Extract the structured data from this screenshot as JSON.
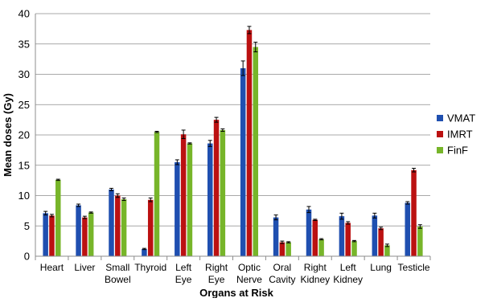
{
  "chart_data": {
    "type": "bar",
    "title": "",
    "xlabel": "Organs at Risk",
    "ylabel": "Mean doses (Gy)",
    "ylim": [
      0,
      40
    ],
    "yticks": [
      0,
      5,
      10,
      15,
      20,
      25,
      30,
      35,
      40
    ],
    "grid": true,
    "legend_position": "right",
    "categories": [
      [
        "Heart"
      ],
      [
        "Liver"
      ],
      [
        "Small",
        "Bowel"
      ],
      [
        "Thyroid"
      ],
      [
        "Left",
        "Eye"
      ],
      [
        "Right",
        "Eye"
      ],
      [
        "Optic",
        "Nerve"
      ],
      [
        "Oral",
        "Cavity"
      ],
      [
        "Right",
        "Kidney"
      ],
      [
        "Left",
        "Kidney"
      ],
      [
        "Lung"
      ],
      [
        "Testicle"
      ]
    ],
    "series": [
      {
        "name": "VMAT",
        "color": "#1f4fb0",
        "values": [
          7.1,
          8.4,
          11.0,
          1.2,
          15.5,
          18.6,
          31.0,
          6.4,
          7.7,
          6.6,
          6.7,
          8.8
        ],
        "errors": [
          0.3,
          0.2,
          0.2,
          0.1,
          0.4,
          0.5,
          1.2,
          0.4,
          0.5,
          0.5,
          0.4,
          0.2
        ]
      },
      {
        "name": "IMRT",
        "color": "#bb1111",
        "values": [
          6.7,
          6.4,
          10.0,
          9.3,
          20.1,
          22.5,
          37.3,
          2.3,
          6.0,
          5.5,
          4.6,
          14.2
        ],
        "errors": [
          0.2,
          0.2,
          0.3,
          0.3,
          0.7,
          0.4,
          0.6,
          0.2,
          0.1,
          0.2,
          0.2,
          0.3
        ]
      },
      {
        "name": "FinF",
        "color": "#77b52a",
        "values": [
          12.6,
          7.2,
          9.4,
          20.5,
          18.6,
          20.8,
          34.5,
          2.3,
          2.8,
          2.5,
          1.8,
          4.9
        ],
        "errors": [
          0.1,
          0.1,
          0.2,
          0.1,
          0.1,
          0.2,
          0.8,
          0.1,
          0.1,
          0.1,
          0.2,
          0.3
        ]
      }
    ]
  }
}
